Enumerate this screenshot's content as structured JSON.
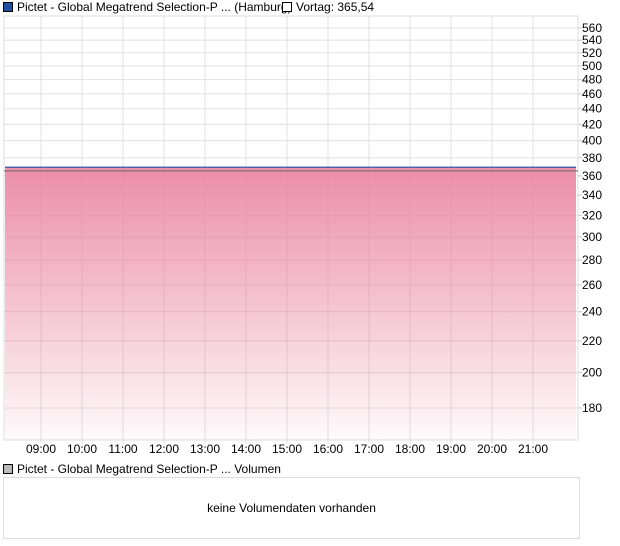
{
  "chart_data": {
    "type": "area",
    "series": [
      {
        "name": "Pictet - Global Megatrend Selection-P ... (Hamburg)",
        "color": "#1f4fa0",
        "values": [
          369.5
        ]
      }
    ],
    "reference": {
      "label": "Vortag: 365,54",
      "value": 365.54,
      "color": "#666666"
    },
    "x_ticks": [
      "09:00",
      "10:00",
      "11:00",
      "12:00",
      "13:00",
      "14:00",
      "15:00",
      "16:00",
      "17:00",
      "18:00",
      "19:00",
      "20:00",
      "21:00"
    ],
    "y_ticks": [
      560,
      540,
      520,
      500,
      480,
      460,
      440,
      420,
      400,
      380,
      360,
      340,
      320,
      300,
      280,
      260,
      240,
      220,
      200,
      180
    ],
    "y_scale": "log",
    "ylim": [
      162,
      580
    ],
    "grid": true,
    "fill_color": "#e9819f"
  },
  "legend": {
    "main": "Pictet - Global Megatrend Selection-P ... (Hamburg)",
    "previous": "Vortag: 365,54"
  },
  "volume": {
    "legend": "Pictet - Global Megatrend Selection-P ... Volumen",
    "empty_text": "keine Volumendaten vorhanden"
  }
}
